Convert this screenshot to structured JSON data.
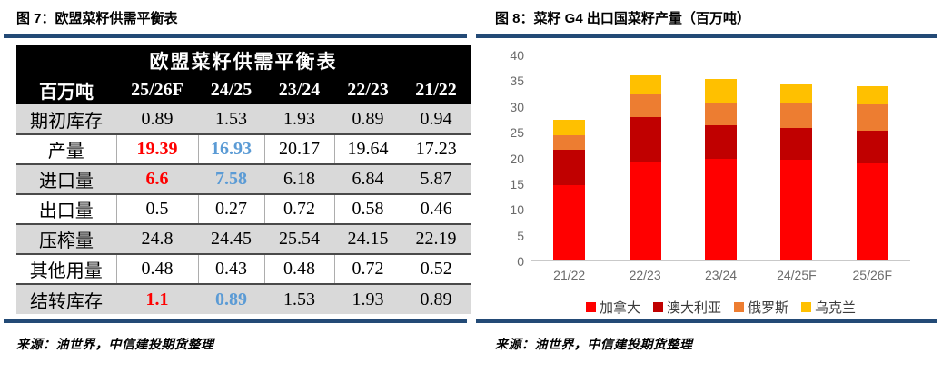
{
  "figure7": {
    "caption": "图 7：欧盟菜籽供需平衡表",
    "source": "来源：油世界，中信建投期货整理",
    "table": {
      "title": "欧盟菜籽供需平衡表",
      "unit_label": "百万吨",
      "columns": [
        "25/26F",
        "24/25",
        "23/24",
        "22/23",
        "21/22"
      ],
      "rows": [
        {
          "label": "期初库存",
          "values": [
            "0.89",
            "1.53",
            "1.93",
            "0.89",
            "0.94"
          ],
          "value_colors": [
            null,
            null,
            null,
            null,
            null
          ]
        },
        {
          "label": "产量",
          "values": [
            "19.39",
            "16.93",
            "20.17",
            "19.64",
            "17.23"
          ],
          "value_colors": [
            "red",
            "blue",
            null,
            null,
            null
          ]
        },
        {
          "label": "进口量",
          "values": [
            "6.6",
            "7.58",
            "6.18",
            "6.84",
            "5.87"
          ],
          "value_colors": [
            "red",
            "blue",
            null,
            null,
            null
          ]
        },
        {
          "label": "出口量",
          "values": [
            "0.5",
            "0.27",
            "0.72",
            "0.58",
            "0.46"
          ],
          "value_colors": [
            null,
            null,
            null,
            null,
            null
          ]
        },
        {
          "label": "压榨量",
          "values": [
            "24.8",
            "24.45",
            "25.54",
            "24.15",
            "22.19"
          ],
          "value_colors": [
            null,
            null,
            null,
            null,
            null
          ]
        },
        {
          "label": "其他用量",
          "values": [
            "0.48",
            "0.43",
            "0.48",
            "0.72",
            "0.52"
          ],
          "value_colors": [
            null,
            null,
            null,
            null,
            null
          ]
        },
        {
          "label": "结转库存",
          "values": [
            "1.1",
            "0.89",
            "1.53",
            "1.93",
            "0.89"
          ],
          "value_colors": [
            "red",
            "blue",
            null,
            null,
            null
          ]
        }
      ]
    }
  },
  "figure8": {
    "caption": "图 8：菜籽 G4 出口国菜籽产量（百万吨）",
    "source": "来源：油世界，中信建投期货整理"
  },
  "chart_data": {
    "type": "bar",
    "stacked": true,
    "title": "菜籽 G4 出口国菜籽产量（百万吨）",
    "categories": [
      "21/22",
      "22/23",
      "23/24",
      "24/25F",
      "25/26F"
    ],
    "series": [
      {
        "name": "加拿大",
        "color": "#FF0000",
        "values": [
          14.5,
          18.8,
          19.5,
          19.3,
          18.7
        ]
      },
      {
        "name": "澳大利亚",
        "color": "#C00000",
        "values": [
          6.9,
          8.8,
          6.6,
          6.3,
          6.4
        ]
      },
      {
        "name": "俄罗斯",
        "color": "#ED7D31",
        "values": [
          2.7,
          4.5,
          4.2,
          4.7,
          5.0
        ]
      },
      {
        "name": "乌克兰",
        "color": "#FFC000",
        "values": [
          3.1,
          3.6,
          4.7,
          3.7,
          3.5
        ]
      }
    ],
    "xlabel": "",
    "ylabel": "",
    "ylim": [
      0,
      40
    ],
    "yticks": [
      0,
      5,
      10,
      15,
      20,
      25,
      30,
      35,
      40
    ],
    "grid": false,
    "legend_position": "bottom"
  },
  "colors": {
    "rule_blue": "#234A76",
    "table_header_bg": "#000000",
    "table_shade": "#D9D9D9",
    "highlight_red": "#FF0000",
    "highlight_blue": "#5B9BD5",
    "axis_label": "#6B6B6B",
    "axis_line": "#C9C9C9"
  }
}
